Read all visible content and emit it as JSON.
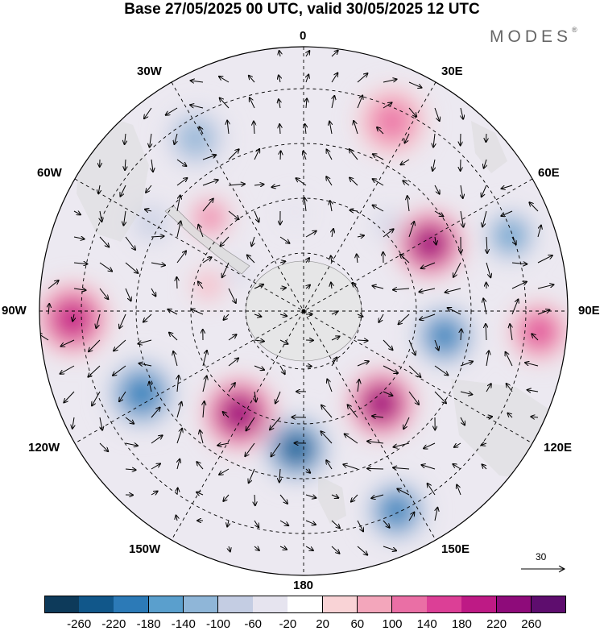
{
  "header": {
    "title": "Base 27/05/2025 00 UTC, valid 30/05/2025 12 UTC",
    "brand": "MODES",
    "brand_mark": "®"
  },
  "map": {
    "projection": "south polar stereographic",
    "longitude_labels": {
      "top": "0",
      "top_right": "30E",
      "upper_right": "60E",
      "right": "90E",
      "lower_right": "120E",
      "bottom_right": "150E",
      "bottom": "180",
      "bottom_left": "150W",
      "lower_left": "120W",
      "left": "90W",
      "upper_left": "60W",
      "top_left": "30W"
    },
    "reference_vector": {
      "value": "30"
    }
  },
  "colorbar": {
    "tick_labels": [
      "-260",
      "-220",
      "-180",
      "-140",
      "-100",
      "-60",
      "-20",
      "20",
      "60",
      "100",
      "140",
      "180",
      "220",
      "260"
    ],
    "colors": [
      "#0d3a5a",
      "#11578a",
      "#2c7ab7",
      "#5a9fcd",
      "#8fb6d8",
      "#c4cde3",
      "#e6e4ef",
      "#ffffff",
      "#f9d3d6",
      "#f3a6bb",
      "#ea6fa5",
      "#dc3f96",
      "#be1a85",
      "#8e0b7a",
      "#5e0d6e"
    ]
  },
  "anomalies": [
    {
      "lon": 328,
      "colat": 37,
      "r": 28,
      "kind": "neg",
      "level": 3
    },
    {
      "lon": 25,
      "colat": 38,
      "r": 30,
      "kind": "pos",
      "level": 3
    },
    {
      "lon": 315,
      "colat": 24,
      "r": 18,
      "kind": "pos",
      "level": 3
    },
    {
      "lon": 300,
      "colat": 32,
      "r": 20,
      "kind": "neg",
      "level": 2
    },
    {
      "lon": 45,
      "colat": 22,
      "r": 14,
      "kind": "neg",
      "level": 2
    },
    {
      "lon": 62,
      "colat": 26,
      "r": 30,
      "kind": "pos",
      "level": 6
    },
    {
      "lon": 70,
      "colat": 40,
      "r": 24,
      "kind": "neg",
      "level": 4
    },
    {
      "lon": 100,
      "colat": 26,
      "r": 28,
      "kind": "neg",
      "level": 5
    },
    {
      "lon": 95,
      "colat": 43,
      "r": 26,
      "kind": "pos",
      "level": 4
    },
    {
      "lon": 140,
      "colat": 22,
      "r": 30,
      "kind": "pos",
      "level": 6
    },
    {
      "lon": 155,
      "colat": 40,
      "r": 28,
      "kind": "neg",
      "level": 5
    },
    {
      "lon": 183,
      "colat": 25,
      "r": 30,
      "kind": "neg",
      "level": 6
    },
    {
      "lon": 212,
      "colat": 22,
      "r": 32,
      "kind": "pos",
      "level": 6
    },
    {
      "lon": 243,
      "colat": 33,
      "r": 32,
      "kind": "neg",
      "level": 5
    },
    {
      "lon": 268,
      "colat": 42,
      "r": 32,
      "kind": "pos",
      "level": 5
    },
    {
      "lon": 285,
      "colat": 18,
      "r": 14,
      "kind": "pos",
      "level": 2
    },
    {
      "lon": 300,
      "colat": 14,
      "r": 10,
      "kind": "neg",
      "level": 2
    },
    {
      "lon": 355,
      "colat": 18,
      "r": 12,
      "kind": "neg",
      "level": 1
    }
  ]
}
